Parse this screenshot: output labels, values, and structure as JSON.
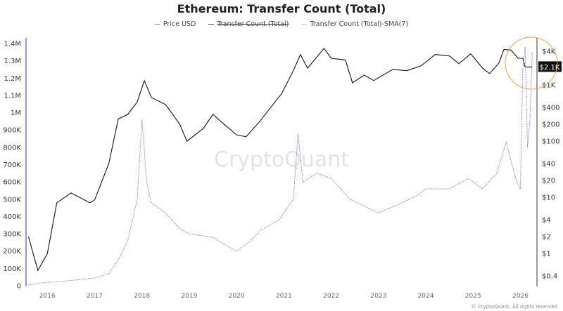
{
  "chart_data": {
    "type": "line",
    "title": "Ethereum: Transfer Count (Total)",
    "legend": [
      {
        "name": "Price USD",
        "hidden": false
      },
      {
        "name": "Transfer Count (Total)",
        "hidden": true
      },
      {
        "name": "Transfer Count (Total)-SMA(7)",
        "hidden": false
      }
    ],
    "legend_position": "top-center",
    "left_axis": {
      "ticks": [
        0,
        100000,
        200000,
        300000,
        400000,
        500000,
        600000,
        700000,
        800000,
        900000,
        1000000,
        1100000,
        1200000,
        1300000,
        1400000
      ],
      "tick_labels": [
        "0",
        "100K",
        "200K",
        "300K",
        "400K",
        "500K",
        "600K",
        "700K",
        "800K",
        "900K",
        "1M",
        "1.1M",
        "1.2M",
        "1.3M",
        "1.4M"
      ],
      "ylim": [
        0,
        1400000
      ]
    },
    "right_axis": {
      "scale": "log",
      "ticks": [
        4000,
        1000,
        400,
        200,
        100,
        40,
        20,
        10,
        4,
        2,
        1,
        0.4
      ],
      "tick_labels": [
        "$4K",
        "$1K",
        "$400",
        "$200",
        "$100",
        "$40",
        "$20",
        "$10",
        "$4",
        "$2",
        "$1",
        "$0.4"
      ],
      "current_value_label": "$2.1K",
      "current_value": 2100
    },
    "x_axis": {
      "tick_labels": [
        "2016",
        "2017",
        "2018",
        "2019",
        "2020",
        "2021",
        "2022",
        "2023",
        "2024",
        "2025",
        "2026"
      ],
      "xlim": [
        2015.55,
        2026.35
      ]
    },
    "series": [
      {
        "name": "Price USD",
        "axis": "right",
        "color": "#111111",
        "x": [
          2015.6,
          2015.8,
          2016.0,
          2016.2,
          2016.5,
          2016.9,
          2017.0,
          2017.3,
          2017.5,
          2017.7,
          2017.9,
          2018.05,
          2018.2,
          2018.5,
          2018.8,
          2018.95,
          2019.3,
          2019.5,
          2019.8,
          2020.0,
          2020.2,
          2020.5,
          2020.7,
          2020.95,
          2021.2,
          2021.35,
          2021.5,
          2021.85,
          2022.0,
          2022.3,
          2022.45,
          2022.7,
          2022.9,
          2023.3,
          2023.6,
          2023.9,
          2024.2,
          2024.5,
          2024.7,
          2024.95,
          2025.2,
          2025.35,
          2025.55,
          2025.65,
          2025.8,
          2025.95,
          2026.05,
          2026.1,
          2026.25
        ],
        "y": [
          2,
          0.5,
          1,
          8,
          12,
          8,
          9,
          40,
          250,
          300,
          500,
          1200,
          600,
          450,
          200,
          100,
          170,
          300,
          180,
          130,
          120,
          230,
          380,
          700,
          1800,
          3500,
          2000,
          4500,
          3000,
          2800,
          1100,
          1500,
          1200,
          1900,
          1800,
          2200,
          3500,
          3300,
          2400,
          3600,
          2000,
          1600,
          2500,
          4300,
          4200,
          3000,
          3000,
          2100,
          2100
        ]
      },
      {
        "name": "Transfer Count (Total)-SMA(7)",
        "axis": "left",
        "color": "#7b6fd6",
        "x": [
          2015.6,
          2016.0,
          2016.5,
          2017.0,
          2017.3,
          2017.5,
          2017.7,
          2017.9,
          2018.0,
          2018.1,
          2018.2,
          2018.5,
          2018.8,
          2019.0,
          2019.5,
          2019.8,
          2020.0,
          2020.3,
          2020.5,
          2020.9,
          2021.2,
          2021.3,
          2021.4,
          2021.7,
          2022.0,
          2022.4,
          2022.7,
          2023.0,
          2023.5,
          2023.8,
          2024.0,
          2024.5,
          2024.9,
          2025.2,
          2025.5,
          2025.7,
          2025.9,
          2026.0,
          2026.05,
          2026.1,
          2026.15,
          2026.2,
          2026.25
        ],
        "y": [
          5000,
          20000,
          30000,
          45000,
          70000,
          150000,
          260000,
          500000,
          960000,
          600000,
          480000,
          420000,
          330000,
          300000,
          280000,
          230000,
          200000,
          260000,
          320000,
          380000,
          500000,
          880000,
          600000,
          650000,
          620000,
          500000,
          460000,
          420000,
          480000,
          520000,
          560000,
          560000,
          620000,
          560000,
          650000,
          830000,
          620000,
          560000,
          1250000,
          1380000,
          800000,
          950000,
          1350000
        ]
      }
    ]
  },
  "watermark": "CryptoQuant",
  "footer": "© CryptoQuant. All rights reserved"
}
